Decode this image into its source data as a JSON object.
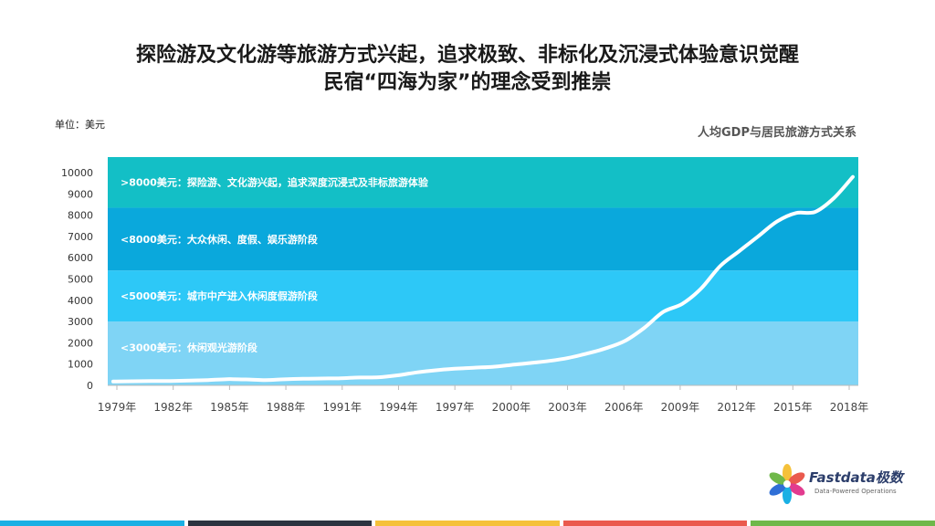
{
  "title_line1": "探险游及文化游等旅游方式兴起，追求极致、非标化及沉浸式体验意识觉醒",
  "title_line2": "民宿“四海为家”的理念受到推崇",
  "unit_label": "单位：美元",
  "chart_title": "人均GDP与居民旅游方式关系",
  "brand": {
    "name": "Fastdata极数",
    "tagline": "Data-Powered Operations"
  },
  "colors": {
    "band_1": "#7fd4f5",
    "band_2": "#2dc8f7",
    "band_3": "#0aa8dc",
    "band_4": "#13bfc6",
    "line": "#ffffff",
    "bottom_bar": [
      "#1ab0e4",
      "#2b3440",
      "#f5c13a",
      "#ea5a4e",
      "#6fb84a"
    ]
  },
  "chart_data": {
    "type": "line",
    "title": "人均GDP与居民旅游方式关系",
    "ylabel": "单位：美元",
    "xlabel": "",
    "ylim": [
      0,
      10000
    ],
    "yticks": [
      0,
      1000,
      2000,
      3000,
      4000,
      5000,
      6000,
      7000,
      8000,
      9000,
      10000
    ],
    "xtick_labels": [
      "1979年",
      "1982年",
      "1985年",
      "1988年",
      "1991年",
      "1994年",
      "1997年",
      "2000年",
      "2003年",
      "2006年",
      "2009年",
      "2012年",
      "2015年",
      "2018年"
    ],
    "grid": false,
    "bands": [
      {
        "from": 0,
        "to": 3000,
        "label": "<3000美元：休闲观光游阶段"
      },
      {
        "from": 3000,
        "to": 5400,
        "label": "<5000美元：城市中产进入休闲度假游阶段"
      },
      {
        "from": 5400,
        "to": 8350,
        "label": "<8000美元：大众休闲、度假、娱乐游阶段"
      },
      {
        "from": 8350,
        "to": 10600,
        "label": ">8000美元：探险游、文化游兴起，追求深度沉浸式及非标旅游体验"
      }
    ],
    "x": [
      1979,
      1980,
      1981,
      1982,
      1983,
      1984,
      1985,
      1986,
      1987,
      1988,
      1989,
      1990,
      1991,
      1992,
      1993,
      1994,
      1995,
      1996,
      1997,
      1998,
      1999,
      2000,
      2001,
      2002,
      2003,
      2004,
      2005,
      2006,
      2007,
      2008,
      2009,
      2010,
      2011,
      2012,
      2013,
      2014,
      2015,
      2016,
      2017,
      2018
    ],
    "series": [
      {
        "values": [
          180,
          195,
          200,
          205,
          225,
          250,
          290,
          280,
          250,
          285,
          310,
          320,
          335,
          370,
          380,
          470,
          610,
          710,
          780,
          830,
          870,
          960,
          1050,
          1150,
          1290,
          1500,
          1750,
          2100,
          2700,
          3450,
          3830,
          4550,
          5600,
          6300,
          7000,
          7700,
          8100,
          8150,
          8800,
          9800
        ]
      }
    ]
  }
}
